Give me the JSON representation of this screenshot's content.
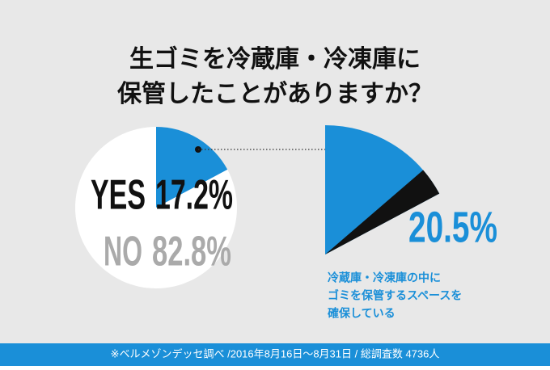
{
  "title_lines": [
    "生ゴミを冷蔵庫・冷凍庫に",
    "保管したことがありますか？"
  ],
  "chart_data": [
    {
      "type": "pie",
      "categories": [
        "YES",
        "NO"
      ],
      "values": [
        17.2,
        82.8
      ],
      "value_labels": [
        "17.2%",
        "82.8%"
      ],
      "colors": [
        "#1a8fd8",
        "#ffffff"
      ],
      "label_colors": [
        "#111111",
        "#aaaaaa"
      ]
    },
    {
      "type": "detail",
      "values": [
        20.5
      ],
      "value_labels": [
        "20.5%"
      ],
      "color": "#111111",
      "base_color": "#1a8fd8",
      "label_lines": [
        "冷蔵庫・冷凍庫の中に",
        "ゴミを保管するスペースを",
        "確保している"
      ]
    }
  ],
  "footer": "※ベルメゾンデッセ調べ /2016年8月16日～8月31日 / 総調査数 4736人"
}
